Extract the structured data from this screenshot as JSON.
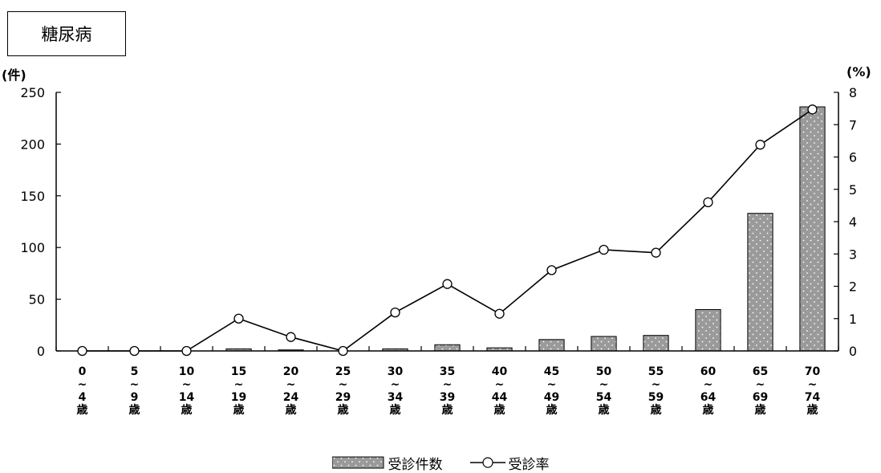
{
  "title": "糖尿病",
  "chart_data": {
    "type": "bar",
    "title": "糖尿病",
    "categories": [
      [
        "0",
        "~",
        "4",
        "歳"
      ],
      [
        "5",
        "~",
        "9",
        "歳"
      ],
      [
        "10",
        "~",
        "14",
        "歳"
      ],
      [
        "15",
        "~",
        "19",
        "歳"
      ],
      [
        "20",
        "~",
        "24",
        "歳"
      ],
      [
        "25",
        "~",
        "29",
        "歳"
      ],
      [
        "30",
        "~",
        "34",
        "歳"
      ],
      [
        "35",
        "~",
        "39",
        "歳"
      ],
      [
        "40",
        "~",
        "44",
        "歳"
      ],
      [
        "45",
        "~",
        "49",
        "歳"
      ],
      [
        "50",
        "~",
        "54",
        "歳"
      ],
      [
        "55",
        "~",
        "59",
        "歳"
      ],
      [
        "60",
        "~",
        "64",
        "歳"
      ],
      [
        "65",
        "~",
        "69",
        "歳"
      ],
      [
        "70",
        "~",
        "74",
        "歳"
      ]
    ],
    "y_left": {
      "unit": "(件)",
      "ylim": [
        0,
        250
      ],
      "ticks": [
        0,
        50,
        100,
        150,
        200,
        250
      ]
    },
    "y_right": {
      "unit": "(%)",
      "ylim": [
        0,
        8
      ],
      "ticks": [
        0,
        1,
        2,
        3,
        4,
        5,
        6,
        7,
        8
      ]
    },
    "series": [
      {
        "name": "受診件数",
        "type": "bar",
        "axis": "left",
        "values": [
          0,
          0,
          0,
          2,
          1,
          0,
          2,
          6,
          3,
          11,
          14,
          15,
          40,
          133,
          236
        ]
      },
      {
        "name": "受診率",
        "type": "line",
        "axis": "right",
        "values": [
          0,
          0,
          0,
          1.0,
          0.43,
          0,
          1.19,
          2.07,
          1.15,
          2.5,
          3.13,
          3.04,
          4.6,
          6.38,
          7.47
        ]
      }
    ],
    "legend_position": "bottom",
    "grid": false
  }
}
